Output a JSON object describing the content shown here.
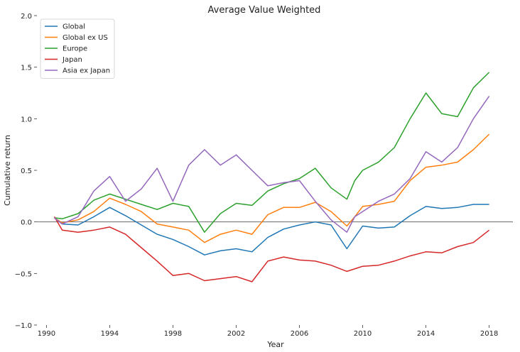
{
  "chart_data": {
    "type": "line",
    "title": "Average Value Weighted",
    "xlabel": "Year",
    "ylabel": "Cumulative return",
    "xlim": [
      1989.4,
      2019.5
    ],
    "ylim": [
      -1.0,
      2.0
    ],
    "x_ticks": [
      1990,
      1994,
      1998,
      2002,
      2006,
      2010,
      2014,
      2018
    ],
    "y_ticks": [
      -1.0,
      -0.5,
      0.0,
      0.5,
      1.0,
      1.5,
      2.0
    ],
    "y_tick_labels": [
      "−1.0",
      "−0.5",
      "0.0",
      "0.5",
      "1.0",
      "1.5",
      "2.0"
    ],
    "zero_line": true,
    "grid": false,
    "legend_position": "top-left",
    "series": [
      {
        "name": "Global",
        "color": "#1f77b4",
        "x": [
          1990.5,
          1991,
          1992,
          1993,
          1994,
          1995,
          1996,
          1997,
          1998,
          1999,
          2000,
          2001,
          2002,
          2003,
          2004,
          2005,
          2006,
          2007,
          2008,
          2009,
          2009.5,
          2010,
          2011,
          2012,
          2013,
          2014,
          2015,
          2016,
          2017,
          2018
        ],
        "y": [
          0.04,
          -0.02,
          -0.03,
          0.05,
          0.14,
          0.06,
          -0.03,
          -0.12,
          -0.17,
          -0.24,
          -0.32,
          -0.28,
          -0.26,
          -0.29,
          -0.15,
          -0.07,
          -0.03,
          0.0,
          -0.03,
          -0.26,
          -0.15,
          -0.04,
          -0.06,
          -0.05,
          0.06,
          0.15,
          0.13,
          0.14,
          0.17,
          0.17
        ]
      },
      {
        "name": "Global ex US",
        "color": "#ff7f0e",
        "x": [
          1990.5,
          1991,
          1992,
          1993,
          1994,
          1995,
          1996,
          1997,
          1998,
          1999,
          2000,
          2001,
          2002,
          2003,
          2004,
          2005,
          2006,
          2007,
          2008,
          2009,
          2009.5,
          2010,
          2011,
          2012,
          2013,
          2014,
          2015,
          2016,
          2017,
          2018
        ],
        "y": [
          0.04,
          -0.01,
          0.02,
          0.1,
          0.23,
          0.17,
          0.1,
          -0.02,
          -0.05,
          -0.08,
          -0.2,
          -0.12,
          -0.08,
          -0.12,
          0.07,
          0.14,
          0.14,
          0.19,
          0.1,
          -0.04,
          0.05,
          0.15,
          0.17,
          0.2,
          0.4,
          0.53,
          0.55,
          0.58,
          0.7,
          0.85
        ]
      },
      {
        "name": "Europe",
        "color": "#2ca02c",
        "x": [
          1990.5,
          1991,
          1992,
          1993,
          1994,
          1995,
          1996,
          1997,
          1998,
          1999,
          2000,
          2001,
          2002,
          2003,
          2004,
          2005,
          2006,
          2007,
          2008,
          2009,
          2009.5,
          2010,
          2011,
          2012,
          2013,
          2014,
          2015,
          2016,
          2017,
          2018
        ],
        "y": [
          0.04,
          0.03,
          0.08,
          0.21,
          0.27,
          0.22,
          0.17,
          0.12,
          0.18,
          0.15,
          -0.1,
          0.08,
          0.18,
          0.16,
          0.3,
          0.37,
          0.42,
          0.52,
          0.33,
          0.22,
          0.4,
          0.5,
          0.58,
          0.72,
          1.0,
          1.25,
          1.05,
          1.02,
          1.3,
          1.45
        ]
      },
      {
        "name": "Japan",
        "color": "#d62728",
        "x": [
          1990.5,
          1991,
          1992,
          1993,
          1994,
          1995,
          1996,
          1997,
          1998,
          1999,
          2000,
          2001,
          2002,
          2003,
          2004,
          2005,
          2006,
          2007,
          2008,
          2009,
          2010,
          2011,
          2012,
          2013,
          2014,
          2015,
          2016,
          2017,
          2018
        ],
        "y": [
          0.05,
          -0.08,
          -0.1,
          -0.08,
          -0.05,
          -0.12,
          -0.25,
          -0.38,
          -0.52,
          -0.5,
          -0.57,
          -0.55,
          -0.53,
          -0.58,
          -0.38,
          -0.34,
          -0.37,
          -0.38,
          -0.42,
          -0.48,
          -0.43,
          -0.42,
          -0.38,
          -0.33,
          -0.29,
          -0.3,
          -0.24,
          -0.2,
          -0.08
        ]
      },
      {
        "name": "Asia ex Japan",
        "color": "#9467bd",
        "x": [
          1990.5,
          1991,
          1992,
          1993,
          1994,
          1995,
          1996,
          1997,
          1998,
          1999,
          2000,
          2001,
          2002,
          2003,
          2004,
          2005,
          2006,
          2007,
          2008,
          2009,
          2009.5,
          2010,
          2011,
          2012,
          2013,
          2014,
          2015,
          2016,
          2017,
          2018
        ],
        "y": [
          0.04,
          -0.02,
          0.05,
          0.3,
          0.44,
          0.2,
          0.32,
          0.52,
          0.2,
          0.55,
          0.7,
          0.55,
          0.65,
          0.5,
          0.35,
          0.38,
          0.4,
          0.2,
          0.02,
          -0.1,
          0.05,
          0.1,
          0.2,
          0.27,
          0.42,
          0.68,
          0.58,
          0.72,
          1.0,
          1.22
        ]
      }
    ]
  }
}
